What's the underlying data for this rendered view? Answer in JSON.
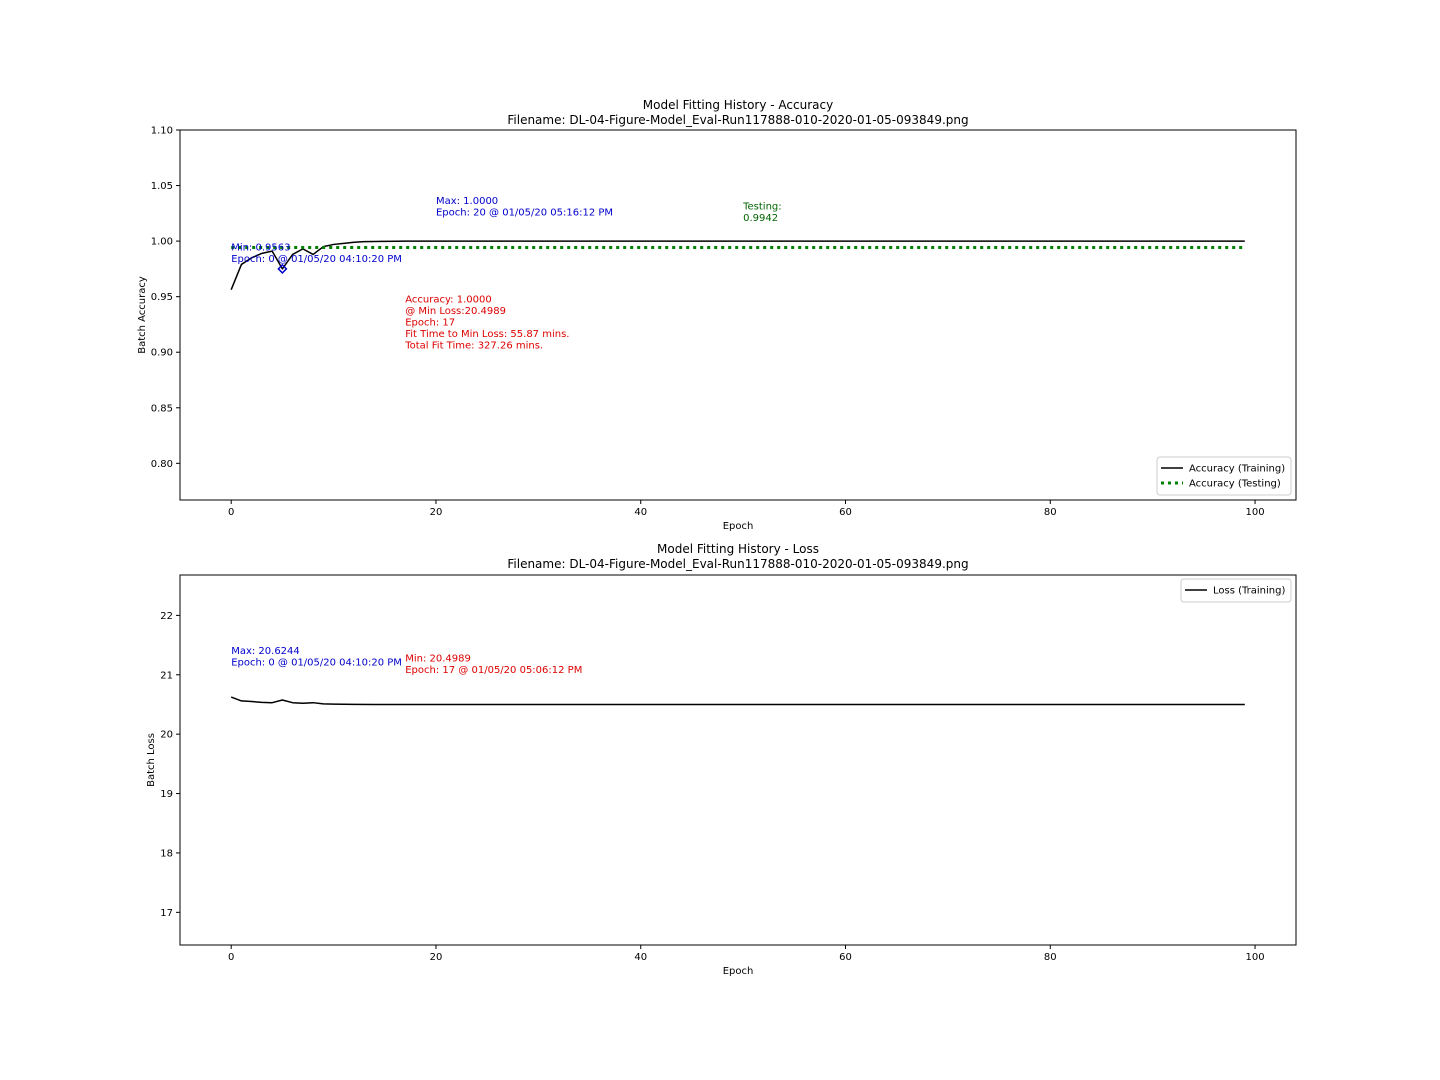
{
  "colors": {
    "training_line": "#000000",
    "testing_line": "#008000",
    "annot_blue": "#0000cc",
    "annot_red": "#dd0000",
    "annot_green": "#006400",
    "axes": "#000000",
    "legend_border": "#cccccc"
  },
  "chart_data": [
    {
      "type": "line",
      "title": "Model Fitting History - Accuracy",
      "subtitle": "Filename: DL-04-Figure-Model_Eval-Run117888-010-2020-01-05-093849.png",
      "xlabel": "Epoch",
      "ylabel": "Batch Accuracy",
      "xlim": [
        -5,
        104
      ],
      "ylim": [
        0.767,
        1.1
      ],
      "xticks": [
        0,
        20,
        40,
        60,
        80,
        100
      ],
      "xtick_labels": [
        "0",
        "20",
        "40",
        "60",
        "80",
        "100"
      ],
      "yticks": [
        0.8,
        0.85,
        0.9,
        0.95,
        1.0,
        1.05,
        1.1
      ],
      "ytick_labels": [
        "0.80",
        "0.85",
        "0.90",
        "0.95",
        "1.00",
        "1.05",
        "1.10"
      ],
      "grid": false,
      "legend_position": "lower right",
      "series": [
        {
          "name": "Accuracy (Training)",
          "style": "solid",
          "x": [
            0,
            1,
            2,
            3,
            4,
            5,
            6,
            7,
            8,
            9,
            10,
            11,
            12,
            13,
            14,
            15,
            17,
            20,
            30,
            40,
            50,
            60,
            70,
            80,
            90,
            99
          ],
          "y": [
            0.9563,
            0.979,
            0.985,
            0.989,
            0.991,
            0.975,
            0.988,
            0.993,
            0.988,
            0.995,
            0.997,
            0.998,
            0.999,
            0.9995,
            0.9997,
            0.9998,
            1.0,
            1.0,
            1.0,
            1.0,
            1.0,
            1.0,
            1.0,
            1.0,
            1.0,
            1.0
          ]
        },
        {
          "name": "Accuracy (Testing)",
          "style": "dotted",
          "x": [
            0,
            99
          ],
          "y": [
            0.9942,
            0.9942
          ]
        }
      ],
      "marker": {
        "x": 5,
        "y": 0.975
      },
      "annotations": [
        {
          "color": "blue",
          "x": 0,
          "y": 0.9915,
          "lines": [
            "Min: 0.9563",
            "Epoch: 0 @ 01/05/20 04:10:20 PM"
          ]
        },
        {
          "color": "blue",
          "x": 20,
          "y": 1.0335,
          "lines": [
            "Max: 1.0000",
            "Epoch: 20 @ 01/05/20 05:16:12 PM"
          ]
        },
        {
          "color": "green",
          "x": 50,
          "y": 1.0285,
          "lines": [
            "Testing:",
            "0.9942"
          ]
        },
        {
          "color": "red",
          "x": 17,
          "y": 0.9448,
          "lines": [
            "Accuracy: 1.0000",
            "@ Min Loss:20.4989",
            "Epoch: 17",
            "Fit Time to Min Loss: 55.87 mins.",
            "Total Fit Time: 327.26 mins."
          ]
        }
      ]
    },
    {
      "type": "line",
      "title": "Model Fitting History - Loss",
      "subtitle": "Filename: DL-04-Figure-Model_Eval-Run117888-010-2020-01-05-093849.png",
      "xlabel": "Epoch",
      "ylabel": "Batch Loss",
      "xlim": [
        -5,
        104
      ],
      "ylim": [
        16.45,
        22.68
      ],
      "xticks": [
        0,
        20,
        40,
        60,
        80,
        100
      ],
      "xtick_labels": [
        "0",
        "20",
        "40",
        "60",
        "80",
        "100"
      ],
      "yticks": [
        17,
        18,
        19,
        20,
        21,
        22
      ],
      "ytick_labels": [
        "17",
        "18",
        "19",
        "20",
        "21",
        "22"
      ],
      "grid": false,
      "legend_position": "upper right",
      "series": [
        {
          "name": "Loss (Training)",
          "style": "solid",
          "x": [
            0,
            1,
            2,
            3,
            4,
            5,
            6,
            7,
            8,
            9,
            10,
            12,
            14,
            17,
            20,
            30,
            40,
            50,
            60,
            70,
            80,
            90,
            99
          ],
          "y": [
            20.6244,
            20.56,
            20.55,
            20.535,
            20.53,
            20.575,
            20.53,
            20.52,
            20.53,
            20.51,
            20.505,
            20.502,
            20.5,
            20.4989,
            20.499,
            20.499,
            20.499,
            20.499,
            20.499,
            20.499,
            20.499,
            20.499,
            20.499
          ]
        }
      ],
      "annotations": [
        {
          "color": "blue",
          "x": 0,
          "y": 21.35,
          "lines": [
            "Max: 20.6244",
            "Epoch: 0 @ 01/05/20 04:10:20 PM"
          ]
        },
        {
          "color": "red",
          "x": 17,
          "y": 21.22,
          "lines": [
            "Min: 20.4989",
            "Epoch: 17 @ 01/05/20 05:06:12 PM"
          ]
        }
      ]
    }
  ]
}
